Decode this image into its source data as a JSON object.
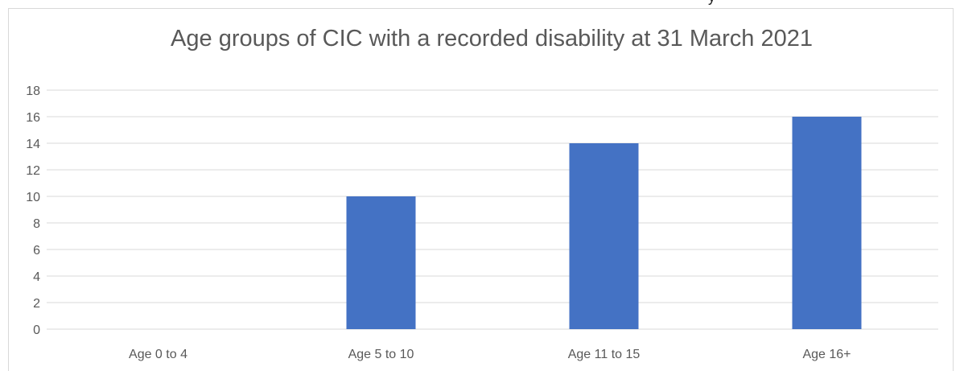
{
  "header_fragment": "y",
  "chart_data": {
    "type": "bar",
    "title": "Age groups of CIC with a recorded disability at 31 March 2021",
    "xlabel": "",
    "ylabel": "",
    "categories": [
      "Age 0 to 4",
      "Age 5 to 10",
      "Age 11 to 15",
      "Age 16+"
    ],
    "values": [
      0,
      10,
      14,
      16
    ],
    "ylim": [
      0,
      18
    ],
    "yticks": [
      0,
      2,
      4,
      6,
      8,
      10,
      12,
      14,
      16,
      18
    ],
    "grid": true,
    "legend": "none",
    "bar_color": "#4472c4",
    "grid_color": "#d9d9d9",
    "text_color": "#595959"
  }
}
